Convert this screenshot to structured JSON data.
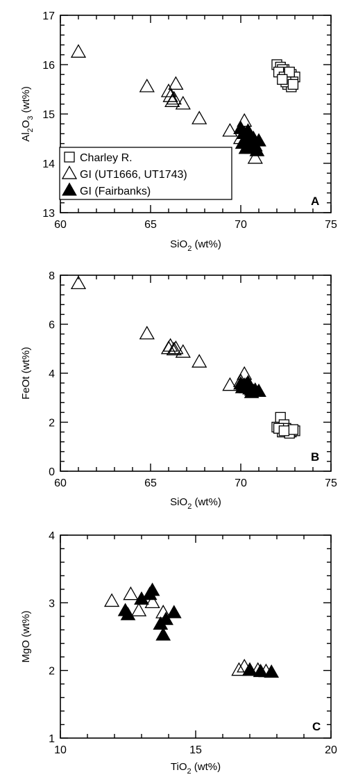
{
  "chart_data": [
    {
      "type": "scatter",
      "panel": "A",
      "xlabel": "SiO2 (wt%)",
      "ylabel": "Al2O3 (wt%)",
      "xlim": [
        60,
        75
      ],
      "ylim": [
        13,
        17
      ],
      "xticks": [
        60,
        65,
        70,
        75
      ],
      "yticks": [
        13,
        14,
        15,
        16,
        17
      ],
      "legend": {
        "position": "bottom-left",
        "entries": [
          {
            "label": "Charley R.",
            "marker": "open-square"
          },
          {
            "label": "GI (UT1666, UT1743)",
            "marker": "open-triangle"
          },
          {
            "label": "GI (Fairbanks)",
            "marker": "filled-triangle"
          }
        ]
      },
      "series": [
        {
          "name": "Charley R.",
          "marker": "open-square",
          "x": [
            72.0,
            72.2,
            72.4,
            72.6,
            72.8,
            73.0,
            72.3,
            72.5,
            72.7,
            72.9,
            72.1,
            72.4,
            72.6,
            72.8,
            72.5,
            72.7,
            72.9,
            72.3
          ],
          "y": [
            16.0,
            15.95,
            15.9,
            15.85,
            15.8,
            15.75,
            15.9,
            15.8,
            15.7,
            15.65,
            15.85,
            15.75,
            15.6,
            15.55,
            15.65,
            15.85,
            15.6,
            15.7
          ]
        },
        {
          "name": "GI (UT1666, UT1743)",
          "marker": "open-triangle",
          "x": [
            61.0,
            64.8,
            66.0,
            66.1,
            66.3,
            66.4,
            66.2,
            66.8,
            67.7,
            69.4,
            70.2,
            70.0,
            70.3,
            70.5,
            70.8
          ],
          "y": [
            16.25,
            15.55,
            15.45,
            15.35,
            15.3,
            15.6,
            15.25,
            15.2,
            14.9,
            14.65,
            14.85,
            14.5,
            14.3,
            14.4,
            14.1
          ]
        },
        {
          "name": "GI (Fairbanks)",
          "marker": "filled-triangle",
          "x": [
            70.0,
            70.2,
            70.3,
            70.4,
            70.5,
            70.6,
            70.7,
            70.8,
            71.0,
            70.1,
            70.4,
            70.6,
            70.9,
            70.3,
            70.5
          ],
          "y": [
            14.7,
            14.6,
            14.5,
            14.55,
            14.45,
            14.4,
            14.5,
            14.35,
            14.45,
            14.4,
            14.65,
            14.3,
            14.25,
            14.3,
            14.55
          ]
        }
      ]
    },
    {
      "type": "scatter",
      "panel": "B",
      "xlabel": "SiO2 (wt%)",
      "ylabel": "FeOt (wt%)",
      "xlim": [
        60,
        75
      ],
      "ylim": [
        0,
        8
      ],
      "xticks": [
        60,
        65,
        70,
        75
      ],
      "yticks": [
        0,
        2,
        4,
        6,
        8
      ],
      "series": [
        {
          "name": "Charley R.",
          "marker": "open-square",
          "x": [
            72.0,
            72.2,
            72.4,
            72.6,
            72.8,
            73.0,
            72.3,
            72.5,
            72.7,
            72.9,
            72.1,
            72.4
          ],
          "y": [
            1.8,
            2.2,
            1.9,
            1.7,
            1.6,
            1.65,
            1.6,
            1.75,
            1.55,
            1.7,
            1.75,
            1.65
          ]
        },
        {
          "name": "GI (UT1666, UT1743)",
          "marker": "open-triangle",
          "x": [
            61.0,
            64.8,
            66.0,
            66.1,
            66.3,
            66.4,
            66.8,
            67.7,
            69.4,
            70.2,
            70.0,
            70.3
          ],
          "y": [
            7.65,
            5.6,
            5.0,
            5.1,
            4.95,
            5.0,
            4.85,
            4.45,
            3.5,
            3.95,
            3.65,
            3.5
          ]
        },
        {
          "name": "GI (Fairbanks)",
          "marker": "filled-triangle",
          "x": [
            70.0,
            70.2,
            70.3,
            70.4,
            70.5,
            70.6,
            70.7,
            70.8,
            71.0,
            70.1,
            70.4,
            70.6
          ],
          "y": [
            3.55,
            3.5,
            3.4,
            3.45,
            3.35,
            3.3,
            3.25,
            3.3,
            3.25,
            3.4,
            3.6,
            3.2
          ]
        }
      ]
    },
    {
      "type": "scatter",
      "panel": "C",
      "xlabel": "TiO2 (wt%)",
      "ylabel": "MgO (wt%)",
      "xlim": [
        10,
        20
      ],
      "ylim": [
        1,
        4
      ],
      "xticks": [
        10,
        15,
        20
      ],
      "yticks": [
        1,
        2,
        3,
        4
      ],
      "series": [
        {
          "name": "GI (UT1666, UT1743)",
          "marker": "open-triangle",
          "x": [
            11.9,
            12.6,
            12.9,
            13.4,
            13.8,
            16.6,
            16.8,
            17.0,
            17.3,
            17.6
          ],
          "y": [
            3.02,
            3.12,
            2.88,
            3.0,
            2.85,
            2.0,
            2.05,
            2.0,
            2.0,
            1.98
          ]
        },
        {
          "name": "GI (Fairbanks)",
          "marker": "filled-triangle",
          "x": [
            12.4,
            12.5,
            13.0,
            13.3,
            13.4,
            13.7,
            13.8,
            13.9,
            14.2,
            17.0,
            17.4,
            17.8
          ],
          "y": [
            2.88,
            2.82,
            3.05,
            3.12,
            3.18,
            2.68,
            2.52,
            2.75,
            2.85,
            2.0,
            1.98,
            1.97
          ]
        }
      ]
    }
  ],
  "panels": [
    {
      "letter": "A",
      "xlabel_main": "SiO",
      "xlabel_sub": "2",
      "xlabel_tail": " (wt%)",
      "ylabel_pre": "Al",
      "ylabel_sub1": "2",
      "ylabel_mid": "O",
      "ylabel_sub2": "3",
      "ylabel_tail": " (wt%)"
    },
    {
      "letter": "B",
      "xlabel_main": "SiO",
      "xlabel_sub": "2",
      "xlabel_tail": " (wt%)",
      "ylabel": "FeOt (wt%)"
    },
    {
      "letter": "C",
      "xlabel_main": "TiO",
      "xlabel_sub": "2",
      "xlabel_tail": " (wt%)",
      "ylabel": "MgO (wt%)"
    }
  ]
}
